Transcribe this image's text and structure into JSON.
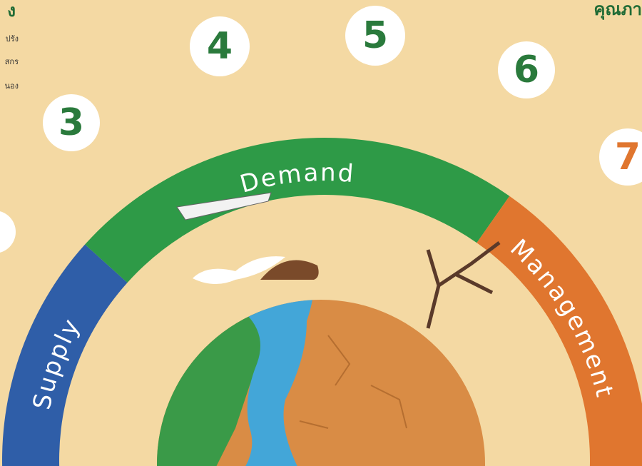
{
  "header": {
    "left_title": "ง",
    "left_lines": [
      "ปรัง",
      "สกร",
      "นอง"
    ],
    "right_title": "คุณภา"
  },
  "steps": [
    {
      "label": "3"
    },
    {
      "label": "4"
    },
    {
      "label": "5"
    },
    {
      "label": "6"
    },
    {
      "label": "7"
    }
  ],
  "arc": {
    "segments": [
      {
        "label": "Supply"
      },
      {
        "label": "Demand"
      },
      {
        "label": "Management"
      }
    ]
  }
}
